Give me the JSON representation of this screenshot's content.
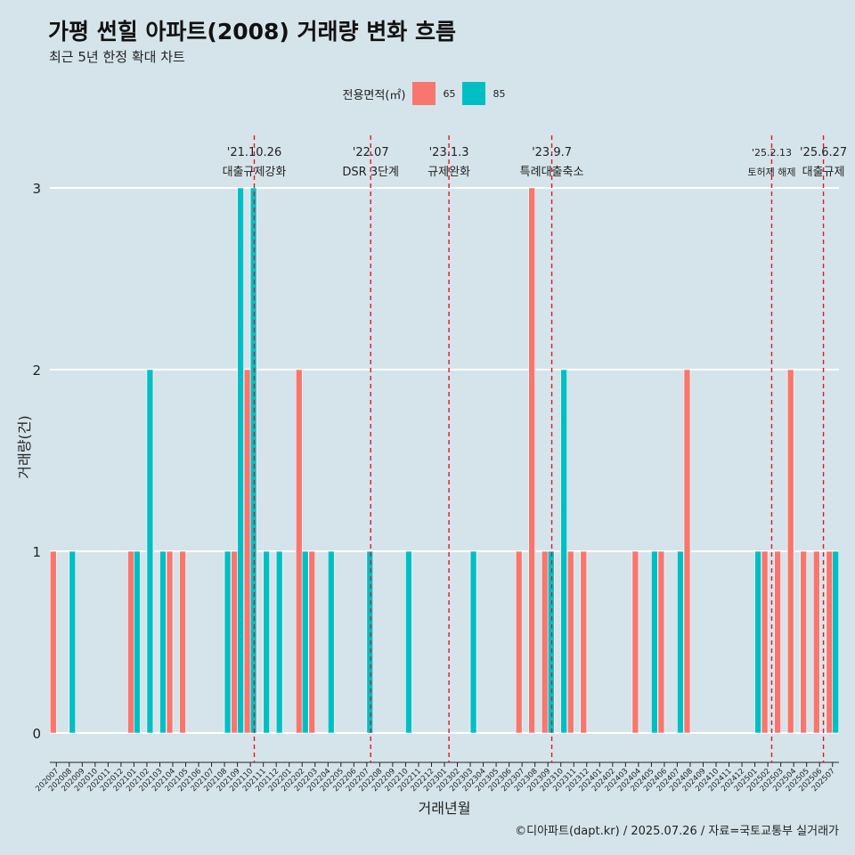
{
  "title": "가평 썬힐 아파트(2008) 거래량 변화 흐름",
  "subtitle": "최근 5년 한정 확대 차트",
  "caption": "©디아파트(dapt.kr) / 2025.07.26 / 자료=국토교통부 실거래가",
  "legend": {
    "title": "전용면적(㎡)",
    "items": [
      {
        "label": "65",
        "color": "#f8766d"
      },
      {
        "label": "85",
        "color": "#00bfc4"
      }
    ]
  },
  "chart_data": {
    "type": "bar",
    "title": "가평 썬힐 아파트(2008) 거래량 변화 흐름",
    "xlabel": "거래년월",
    "ylabel": "거래량(건)",
    "ylim": [
      0,
      3
    ],
    "yticks": [
      0,
      1,
      2,
      3
    ],
    "categories": [
      "202007",
      "202008",
      "202009",
      "202010",
      "202011",
      "202012",
      "202101",
      "202102",
      "202103",
      "202104",
      "202105",
      "202106",
      "202107",
      "202108",
      "202109",
      "202110",
      "202111",
      "202112",
      "202201",
      "202202",
      "202203",
      "202204",
      "202205",
      "202206",
      "202207",
      "202208",
      "202209",
      "202210",
      "202211",
      "202212",
      "202301",
      "202302",
      "202303",
      "202304",
      "202305",
      "202306",
      "202307",
      "202308",
      "202309",
      "202310",
      "202311",
      "202312",
      "202401",
      "202402",
      "202403",
      "202404",
      "202405",
      "202406",
      "202407",
      "202408",
      "202409",
      "202410",
      "202411",
      "202412",
      "202501",
      "202502",
      "202503",
      "202504",
      "202505",
      "202506",
      "202507"
    ],
    "series": [
      {
        "name": "65",
        "color": "#f8766d",
        "values": [
          1,
          0,
          0,
          0,
          0,
          0,
          1,
          0,
          0,
          1,
          1,
          0,
          0,
          0,
          1,
          2,
          0,
          0,
          0,
          2,
          1,
          0,
          0,
          0,
          0,
          0,
          0,
          0,
          0,
          0,
          0,
          0,
          0,
          0,
          0,
          0,
          1,
          3,
          1,
          0,
          1,
          1,
          0,
          0,
          0,
          1,
          0,
          1,
          0,
          2,
          0,
          0,
          0,
          0,
          0,
          1,
          1,
          2,
          1,
          1,
          1
        ]
      },
      {
        "name": "85",
        "color": "#00bfc4",
        "values": [
          0,
          1,
          0,
          0,
          0,
          0,
          1,
          2,
          1,
          0,
          0,
          0,
          0,
          1,
          3,
          3,
          1,
          1,
          0,
          1,
          0,
          1,
          0,
          0,
          1,
          0,
          0,
          1,
          0,
          0,
          0,
          0,
          1,
          0,
          0,
          0,
          0,
          0,
          1,
          2,
          0,
          0,
          0,
          0,
          0,
          0,
          1,
          0,
          1,
          0,
          0,
          0,
          0,
          0,
          1,
          0,
          0,
          0,
          0,
          0,
          1
        ]
      }
    ],
    "annotations": [
      {
        "date": "'21.10.26",
        "label": "대출규제강화",
        "x_index": 15.3
      },
      {
        "date": "'22.07",
        "label": "DSR 3단계",
        "x_index": 24.3
      },
      {
        "date": "'23.1.3",
        "label": "규제완화",
        "x_index": 30.35
      },
      {
        "date": "'23.9.7",
        "label": "특례대출축소",
        "x_index": 38.3
      },
      {
        "date": "'25.2.13",
        "label": "토허제 해제",
        "x_index": 55.3
      },
      {
        "date": "'25.6.27",
        "label": "대출규제",
        "x_index": 59.3
      }
    ]
  }
}
